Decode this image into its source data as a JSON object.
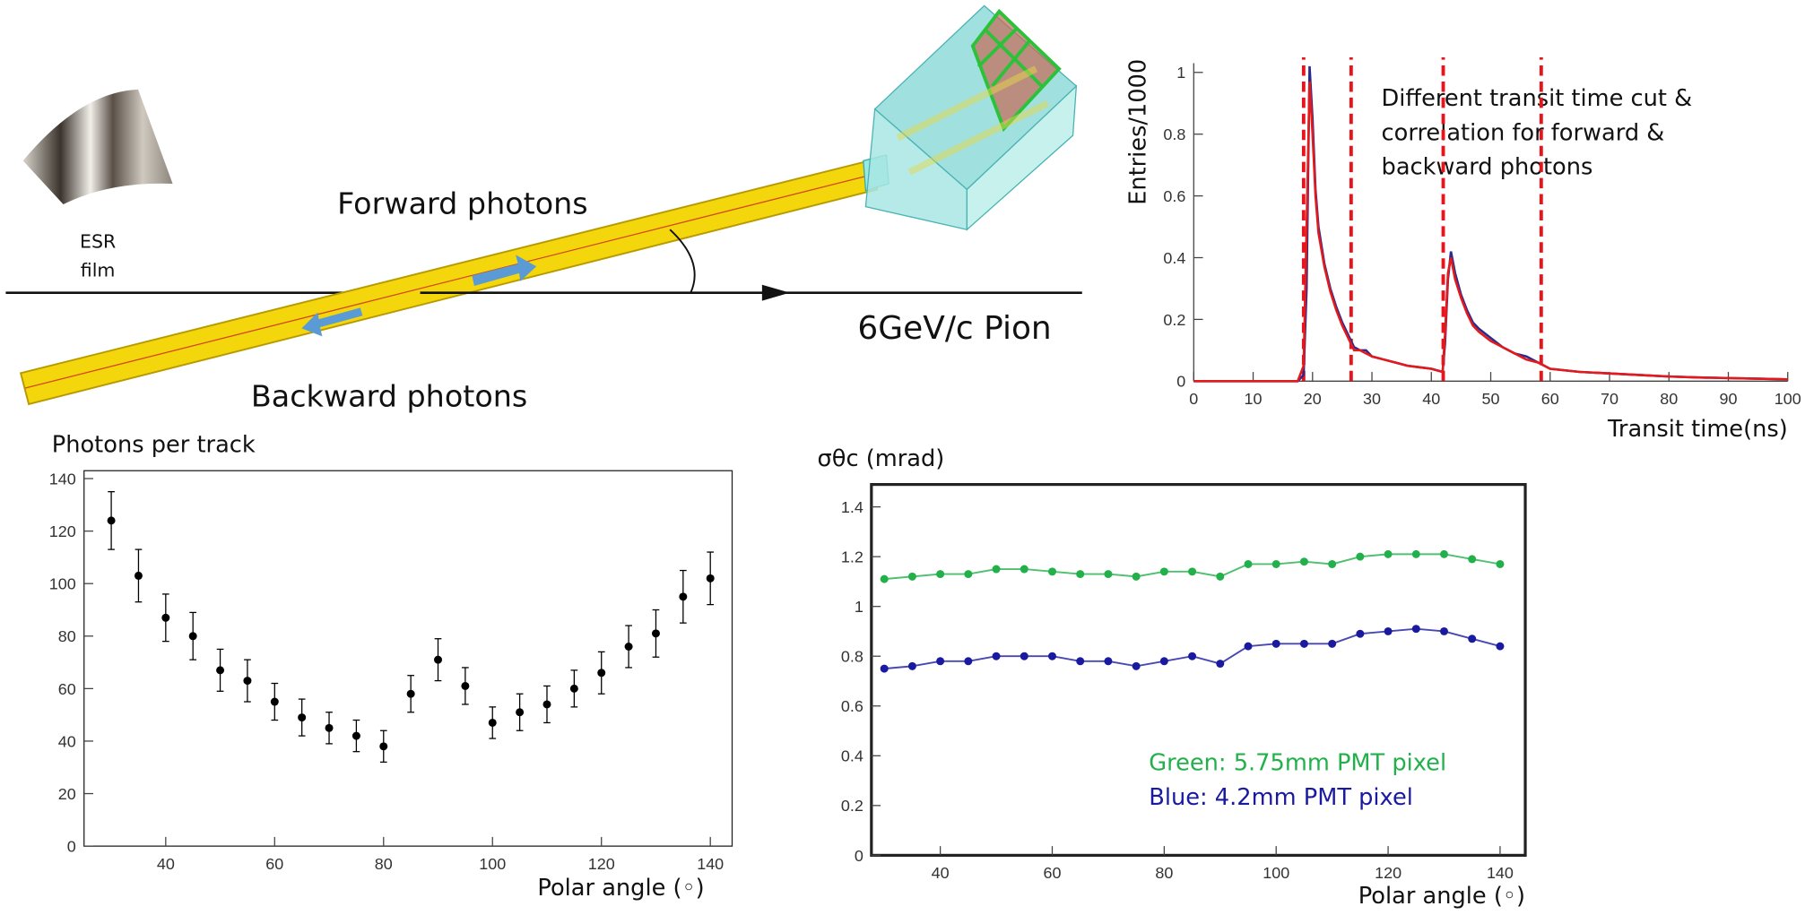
{
  "diagram": {
    "forward_label": "Forward photons",
    "backward_label": "Backward photons",
    "beam_label": "6GeV/c Pion",
    "film_label": [
      "ESR",
      "film"
    ]
  },
  "chart_data": [
    {
      "type": "line",
      "y_label": "Entries/1000",
      "x_label": "Transit time(ns)",
      "annotation": [
        "Different transit time cut &",
        "correlation for forward &",
        "backward photons"
      ],
      "x": [
        0,
        17.5,
        18.5,
        19,
        19.5,
        20,
        20.5,
        21,
        22,
        23,
        24,
        25,
        26,
        27,
        28,
        29,
        30,
        32,
        34,
        36,
        38,
        40,
        41.9,
        42.3,
        42.8,
        43.3,
        44,
        45,
        46,
        47,
        48,
        50,
        52,
        54,
        56,
        58,
        60,
        65,
        70,
        75,
        80,
        85,
        90,
        95,
        100
      ],
      "series": [
        {
          "color": "#2b2b8f",
          "values": [
            0,
            0,
            0.02,
            0.3,
            1.02,
            0.85,
            0.62,
            0.5,
            0.38,
            0.3,
            0.24,
            0.19,
            0.15,
            0.11,
            0.1,
            0.1,
            0.08,
            0.07,
            0.06,
            0.05,
            0.045,
            0.04,
            0.03,
            0.12,
            0.33,
            0.42,
            0.35,
            0.28,
            0.23,
            0.19,
            0.17,
            0.14,
            0.11,
            0.09,
            0.08,
            0.06,
            0.04,
            0.03,
            0.025,
            0.02,
            0.015,
            0.012,
            0.01,
            0.008,
            0.006
          ]
        },
        {
          "color": "#e31a1c",
          "values": [
            0,
            0,
            0.05,
            0.5,
            0.97,
            0.8,
            0.6,
            0.48,
            0.37,
            0.29,
            0.23,
            0.18,
            0.14,
            0.1,
            0.1,
            0.09,
            0.08,
            0.07,
            0.06,
            0.05,
            0.045,
            0.04,
            0.03,
            0.15,
            0.35,
            0.4,
            0.33,
            0.27,
            0.22,
            0.18,
            0.16,
            0.13,
            0.11,
            0.09,
            0.07,
            0.06,
            0.04,
            0.03,
            0.025,
            0.02,
            0.015,
            0.012,
            0.01,
            0.008,
            0.006
          ]
        }
      ],
      "cut_lines": [
        18.5,
        26.5,
        42,
        58.5
      ],
      "cut_line_color": "#e8141b",
      "xlim": [
        0,
        100
      ],
      "xticks": [
        0,
        10,
        20,
        30,
        40,
        50,
        60,
        70,
        80,
        90,
        100
      ],
      "ylim": [
        0,
        1.03
      ],
      "yticks": [
        0,
        0.2,
        0.4,
        0.6,
        0.8,
        1
      ]
    },
    {
      "type": "scatter",
      "title": "Photons per track",
      "x_label": "Polar angle (◦)",
      "color": "#000000",
      "x": [
        30,
        35,
        40,
        45,
        50,
        55,
        60,
        65,
        70,
        75,
        80,
        85,
        90,
        95,
        100,
        105,
        110,
        115,
        120,
        125,
        130,
        135,
        140
      ],
      "values": [
        124,
        103,
        87,
        80,
        67,
        63,
        55,
        49,
        45,
        42,
        38,
        58,
        71,
        61,
        47,
        51,
        54,
        60,
        66,
        76,
        81,
        95,
        102
      ],
      "errors": [
        11,
        10,
        9,
        9,
        8,
        8,
        7,
        7,
        6,
        6,
        6,
        7,
        8,
        7,
        6,
        7,
        7,
        7,
        8,
        8,
        9,
        10,
        10
      ],
      "xlim": [
        25,
        144
      ],
      "xticks": [
        40,
        60,
        80,
        100,
        120,
        140
      ],
      "ylim": [
        0,
        143
      ],
      "yticks": [
        0,
        20,
        40,
        60,
        80,
        100,
        120,
        140
      ]
    },
    {
      "type": "line",
      "markers": true,
      "title": "σθc (mrad)",
      "x_label": "Polar angle (◦)",
      "x": [
        30,
        35,
        40,
        45,
        50,
        55,
        60,
        65,
        70,
        75,
        80,
        85,
        90,
        95,
        100,
        105,
        110,
        115,
        120,
        125,
        130,
        135,
        140
      ],
      "series": [
        {
          "name": "Green: 5.75mm PMT pixel",
          "color": "#22b04b",
          "values": [
            1.11,
            1.12,
            1.13,
            1.13,
            1.15,
            1.15,
            1.14,
            1.13,
            1.13,
            1.12,
            1.14,
            1.14,
            1.12,
            1.17,
            1.17,
            1.18,
            1.17,
            1.2,
            1.21,
            1.21,
            1.21,
            1.19,
            1.17
          ]
        },
        {
          "name": "Blue: 4.2mm PMT pixel",
          "color": "#1a1aa0",
          "values": [
            0.75,
            0.76,
            0.78,
            0.78,
            0.8,
            0.8,
            0.8,
            0.78,
            0.78,
            0.76,
            0.78,
            0.8,
            0.77,
            0.84,
            0.85,
            0.85,
            0.85,
            0.89,
            0.9,
            0.91,
            0.9,
            0.87,
            0.84
          ]
        }
      ],
      "xlim": [
        27.7,
        144.5
      ],
      "xticks": [
        40,
        60,
        80,
        100,
        120,
        140
      ],
      "ylim": [
        0,
        1.49
      ],
      "yticks": [
        0,
        0.2,
        0.4,
        0.6,
        0.8,
        1,
        1.2,
        1.4
      ]
    }
  ]
}
